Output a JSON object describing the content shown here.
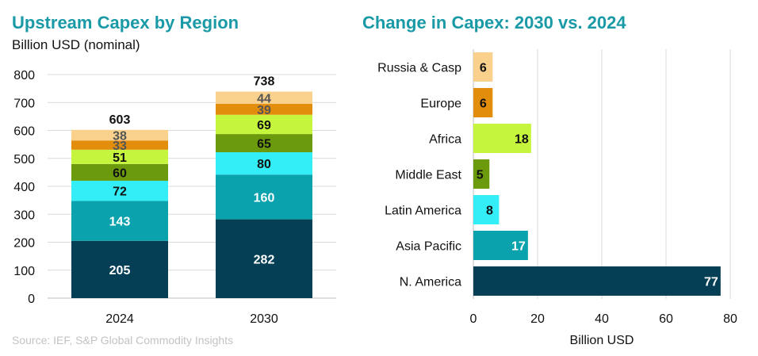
{
  "left": {
    "title": "Upstream Capex by Region",
    "subtitle": "Billion USD (nominal)",
    "source": "Source: IEF, S&P Global Commodity Insights"
  },
  "right": {
    "title": "Change in Capex: 2030 vs. 2024"
  },
  "colors": {
    "title": "#1a9aa6",
    "N. America": "#043f55",
    "Asia Pacific": "#0aa3ad",
    "Latin America": "#33eef7",
    "Middle East": "#6b9a0c",
    "Africa": "#c6f53d",
    "Europe": "#e28d0b",
    "Russia & Casp": "#f9d18c",
    "grid": "#d9d9d9",
    "axis": "#bfbfbf"
  },
  "chart_data": [
    {
      "type": "bar",
      "stacked": true,
      "title": "Upstream Capex by Region",
      "ylabel": "Billion USD (nominal)",
      "categories": [
        "2024",
        "2030"
      ],
      "ylim": [
        0,
        800
      ],
      "yticks": [
        0,
        100,
        200,
        300,
        400,
        500,
        600,
        700,
        800
      ],
      "grid": true,
      "totals": [
        603,
        738
      ],
      "series": [
        {
          "name": "N. America",
          "values": [
            205,
            282
          ]
        },
        {
          "name": "Asia Pacific",
          "values": [
            143,
            160
          ]
        },
        {
          "name": "Latin America",
          "values": [
            72,
            80
          ]
        },
        {
          "name": "Middle East",
          "values": [
            60,
            65
          ]
        },
        {
          "name": "Africa",
          "values": [
            51,
            69
          ]
        },
        {
          "name": "Europe",
          "values": [
            33,
            39
          ]
        },
        {
          "name": "Russia & Casp",
          "values": [
            38,
            44
          ]
        }
      ]
    },
    {
      "type": "bar",
      "orientation": "horizontal",
      "title": "Change in Capex: 2030 vs. 2024",
      "xlabel": "Billion USD",
      "categories": [
        "Russia & Casp",
        "Europe",
        "Africa",
        "Middle East",
        "Latin America",
        "Asia Pacific",
        "N. America"
      ],
      "values": [
        6,
        6,
        18,
        5,
        8,
        17,
        77
      ],
      "xlim": [
        0,
        80
      ],
      "xticks": [
        0,
        20,
        40,
        60,
        80
      ],
      "grid": true
    }
  ]
}
